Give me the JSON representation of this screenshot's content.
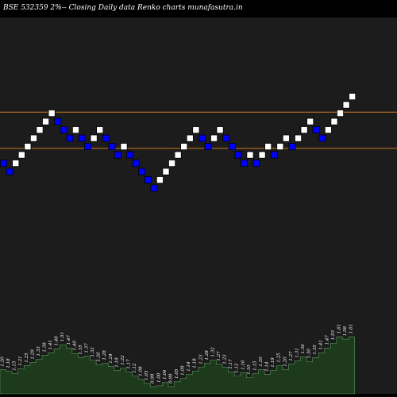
{
  "header": {
    "title": "BSE 532359 2%-- Closing Daily data Renko charts munafasutra.in"
  },
  "colors": {
    "background": "#000000",
    "plot_background": "#1c1c1c",
    "up_brick": "#ffffff",
    "down_brick": "#0000ff",
    "brick_border": "#000000",
    "hline": "#c8781e",
    "volume_fill": "#1d3a1d",
    "volume_stroke": "#5a9a5a"
  },
  "chart_data": [
    {
      "type": "renko",
      "title": "BSE 532359 2%-- Closing Daily data Renko charts munafasutra.in",
      "brick_level_range": [
        -4,
        11
      ],
      "bricks": [
        {
          "level": 1,
          "dir": "down"
        },
        {
          "level": 0,
          "dir": "down"
        },
        {
          "level": 1,
          "dir": "up"
        },
        {
          "level": 2,
          "dir": "up"
        },
        {
          "level": 3,
          "dir": "up"
        },
        {
          "level": 4,
          "dir": "up"
        },
        {
          "level": 5,
          "dir": "up"
        },
        {
          "level": 6,
          "dir": "up"
        },
        {
          "level": 7,
          "dir": "up"
        },
        {
          "level": 6,
          "dir": "down"
        },
        {
          "level": 5,
          "dir": "down"
        },
        {
          "level": 4,
          "dir": "down"
        },
        {
          "level": 5,
          "dir": "up"
        },
        {
          "level": 4,
          "dir": "down"
        },
        {
          "level": 3,
          "dir": "down"
        },
        {
          "level": 4,
          "dir": "up"
        },
        {
          "level": 5,
          "dir": "up"
        },
        {
          "level": 4,
          "dir": "down"
        },
        {
          "level": 3,
          "dir": "down"
        },
        {
          "level": 2,
          "dir": "down"
        },
        {
          "level": 3,
          "dir": "up"
        },
        {
          "level": 2,
          "dir": "down"
        },
        {
          "level": 1,
          "dir": "down"
        },
        {
          "level": 0,
          "dir": "down"
        },
        {
          "level": -1,
          "dir": "down"
        },
        {
          "level": -2,
          "dir": "down"
        },
        {
          "level": -1,
          "dir": "up"
        },
        {
          "level": 0,
          "dir": "up"
        },
        {
          "level": 1,
          "dir": "up"
        },
        {
          "level": 2,
          "dir": "up"
        },
        {
          "level": 3,
          "dir": "up"
        },
        {
          "level": 4,
          "dir": "up"
        },
        {
          "level": 5,
          "dir": "up"
        },
        {
          "level": 4,
          "dir": "down"
        },
        {
          "level": 3,
          "dir": "down"
        },
        {
          "level": 4,
          "dir": "up"
        },
        {
          "level": 5,
          "dir": "up"
        },
        {
          "level": 4,
          "dir": "down"
        },
        {
          "level": 3,
          "dir": "down"
        },
        {
          "level": 2,
          "dir": "down"
        },
        {
          "level": 1,
          "dir": "down"
        },
        {
          "level": 2,
          "dir": "up"
        },
        {
          "level": 1,
          "dir": "down"
        },
        {
          "level": 2,
          "dir": "up"
        },
        {
          "level": 3,
          "dir": "up"
        },
        {
          "level": 2,
          "dir": "down"
        },
        {
          "level": 3,
          "dir": "up"
        },
        {
          "level": 4,
          "dir": "up"
        },
        {
          "level": 3,
          "dir": "down"
        },
        {
          "level": 4,
          "dir": "up"
        },
        {
          "level": 5,
          "dir": "up"
        },
        {
          "level": 6,
          "dir": "up"
        },
        {
          "level": 5,
          "dir": "down"
        },
        {
          "level": 4,
          "dir": "down"
        },
        {
          "level": 5,
          "dir": "up"
        },
        {
          "level": 6,
          "dir": "up"
        },
        {
          "level": 7,
          "dir": "up"
        },
        {
          "level": 8,
          "dir": "up"
        },
        {
          "level": 9,
          "dir": "up"
        }
      ],
      "horizontal_lines_levels": [
        3.15,
        7.5
      ],
      "volume_labels": [
        "1.20",
        "1.18",
        "1.15",
        "1.21",
        "1.25",
        "1.29",
        "1.33",
        "1.38",
        "1.41",
        "1.46",
        "1.51",
        "1.47",
        "1.40",
        "1.35",
        "1.37",
        "1.32",
        "1.26",
        "1.28",
        "1.24",
        "1.19",
        "1.22",
        "1.17",
        "1.12",
        "1.08",
        "1.03",
        "0.99",
        "1.00",
        "1.04",
        "0.99",
        "1.05",
        "1.09",
        "1.14",
        "1.18",
        "1.23",
        "1.28",
        "1.32",
        "1.27",
        "1.23",
        "1.17",
        "1.12",
        "1.16",
        "1.10",
        "1.15",
        "1.20",
        "1.14",
        "1.19",
        "1.25",
        "1.20",
        "1.27",
        "1.31",
        "1.36",
        "1.30",
        "1.35",
        "1.41",
        "1.47",
        "1.53",
        "1.61",
        "1.58",
        "1.61"
      ],
      "volume_values": [
        1.2,
        1.18,
        1.15,
        1.21,
        1.25,
        1.29,
        1.33,
        1.38,
        1.41,
        1.46,
        1.51,
        1.47,
        1.4,
        1.35,
        1.37,
        1.32,
        1.26,
        1.28,
        1.24,
        1.19,
        1.22,
        1.17,
        1.12,
        1.08,
        1.03,
        0.99,
        1.0,
        1.04,
        0.99,
        1.05,
        1.09,
        1.14,
        1.18,
        1.23,
        1.28,
        1.32,
        1.27,
        1.23,
        1.17,
        1.12,
        1.16,
        1.1,
        1.15,
        1.2,
        1.14,
        1.19,
        1.25,
        1.2,
        1.27,
        1.31,
        1.36,
        1.3,
        1.35,
        1.41,
        1.47,
        1.53,
        1.61,
        1.58,
        1.61
      ],
      "volume_range": [
        0.9,
        1.75
      ]
    }
  ]
}
